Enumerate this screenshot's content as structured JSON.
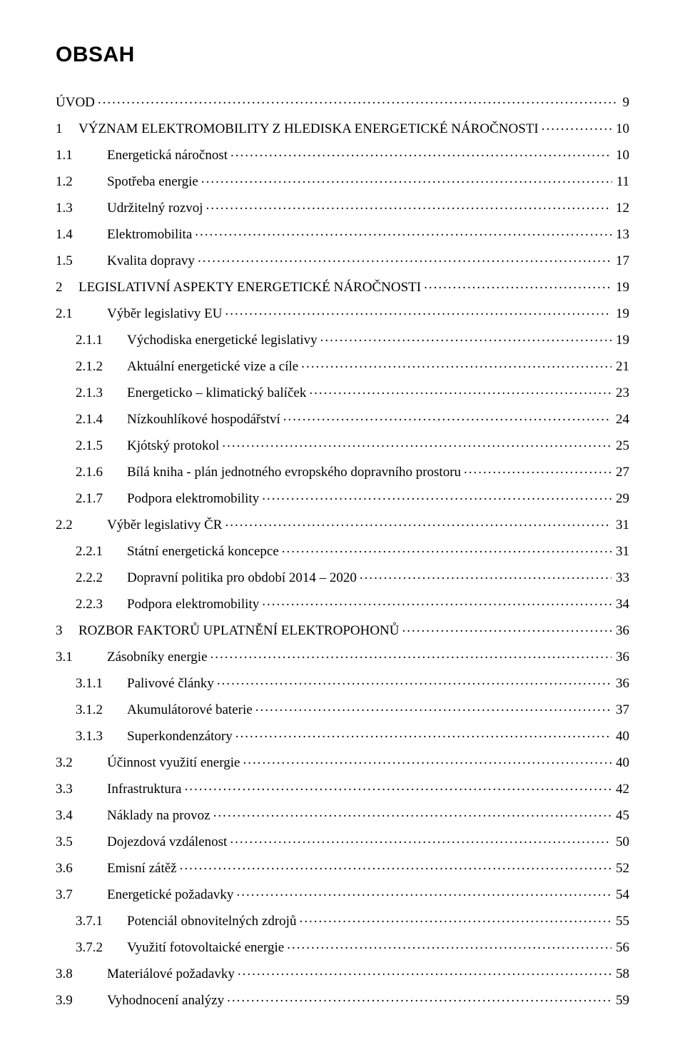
{
  "title": "OBSAH",
  "fonts": {
    "title_family": "Arial",
    "title_weight": 700,
    "title_size_pt": 22,
    "body_family": "Times New Roman",
    "body_size_pt": 14
  },
  "colors": {
    "text": "#000000",
    "background": "#ffffff"
  },
  "entries": [
    {
      "level": 0,
      "num": "",
      "label": "ÚVOD",
      "page": "9",
      "class": "uvod"
    },
    {
      "level": 0,
      "num": "1",
      "label": "VÝZNAM ELEKTROMOBILITY Z HLEDISKA ENERGETICKÉ NÁROČNOSTI",
      "page": "10"
    },
    {
      "level": 1,
      "num": "1.1",
      "label": "Energetická náročnost",
      "page": "10"
    },
    {
      "level": 1,
      "num": "1.2",
      "label": "Spotřeba energie",
      "page": "11"
    },
    {
      "level": 1,
      "num": "1.3",
      "label": "Udržitelný rozvoj",
      "page": "12"
    },
    {
      "level": 1,
      "num": "1.4",
      "label": "Elektromobilita",
      "page": "13"
    },
    {
      "level": 1,
      "num": "1.5",
      "label": "Kvalita dopravy",
      "page": "17"
    },
    {
      "level": 0,
      "num": "2",
      "label": "LEGISLATIVNÍ ASPEKTY ENERGETICKÉ NÁROČNOSTI",
      "page": "19"
    },
    {
      "level": 1,
      "num": "2.1",
      "label": "Výběr legislativy EU",
      "page": "19"
    },
    {
      "level": 2,
      "num": "2.1.1",
      "label": "Východiska energetické legislativy",
      "page": "19"
    },
    {
      "level": 2,
      "num": "2.1.2",
      "label": "Aktuální energetické vize a cíle",
      "page": "21"
    },
    {
      "level": 2,
      "num": "2.1.3",
      "label": "Energeticko – klimatický balíček",
      "page": "23"
    },
    {
      "level": 2,
      "num": "2.1.4",
      "label": "Nízkouhlíkové hospodářství",
      "page": "24"
    },
    {
      "level": 2,
      "num": "2.1.5",
      "label": "Kjótský protokol",
      "page": "25"
    },
    {
      "level": 2,
      "num": "2.1.6",
      "label": "Bílá kniha - plán jednotného evropského dopravního prostoru",
      "page": "27"
    },
    {
      "level": 2,
      "num": "2.1.7",
      "label": "Podpora elektromobility",
      "page": "29"
    },
    {
      "level": 1,
      "num": "2.2",
      "label": "Výběr legislativy ČR",
      "page": "31"
    },
    {
      "level": 2,
      "num": "2.2.1",
      "label": "Státní energetická koncepce",
      "page": "31"
    },
    {
      "level": 2,
      "num": "2.2.2",
      "label": "Dopravní politika pro období 2014 – 2020",
      "page": "33"
    },
    {
      "level": 2,
      "num": "2.2.3",
      "label": "Podpora elektromobility",
      "page": "34"
    },
    {
      "level": 0,
      "num": "3",
      "label": "ROZBOR FAKTORŮ UPLATNĚNÍ ELEKTROPOHONŮ",
      "page": "36"
    },
    {
      "level": 1,
      "num": "3.1",
      "label": "Zásobníky energie",
      "page": "36"
    },
    {
      "level": 2,
      "num": "3.1.1",
      "label": "Palivové články",
      "page": "36"
    },
    {
      "level": 2,
      "num": "3.1.2",
      "label": "Akumulátorové baterie",
      "page": "37"
    },
    {
      "level": 2,
      "num": "3.1.3",
      "label": "Superkondenzátory",
      "page": "40"
    },
    {
      "level": 1,
      "num": "3.2",
      "label": "Účinnost využití energie",
      "page": "40"
    },
    {
      "level": 1,
      "num": "3.3",
      "label": "Infrastruktura",
      "page": "42"
    },
    {
      "level": 1,
      "num": "3.4",
      "label": "Náklady na provoz",
      "page": "45"
    },
    {
      "level": 1,
      "num": "3.5",
      "label": "Dojezdová vzdálenost",
      "page": "50"
    },
    {
      "level": 1,
      "num": "3.6",
      "label": "Emisní zátěž",
      "page": "52"
    },
    {
      "level": 1,
      "num": "3.7",
      "label": "Energetické požadavky",
      "page": "54"
    },
    {
      "level": 2,
      "num": "3.7.1",
      "label": "Potenciál obnovitelných zdrojů",
      "page": "55"
    },
    {
      "level": 2,
      "num": "3.7.2",
      "label": "Využití fotovoltaické energie",
      "page": "56"
    },
    {
      "level": 1,
      "num": "3.8",
      "label": "Materiálové požadavky",
      "page": "58"
    },
    {
      "level": 1,
      "num": "3.9",
      "label": "Vyhodnocení analýzy",
      "page": "59"
    }
  ]
}
